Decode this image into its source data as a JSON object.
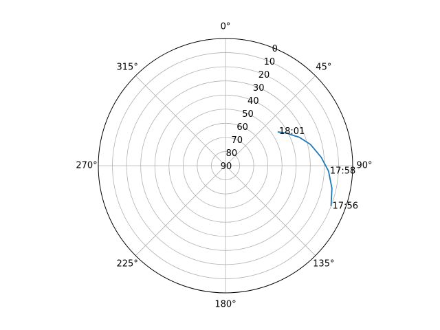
{
  "chart_data": {
    "type": "line",
    "projection": "polar",
    "theta_zero_location": "top",
    "theta_direction": "clockwise",
    "r_axis": {
      "inverted": true,
      "range": [
        0,
        90
      ],
      "ticks": [
        0,
        10,
        20,
        30,
        40,
        50,
        60,
        70,
        80,
        90
      ]
    },
    "theta_tick_labels": [
      "0°",
      "45°",
      "90°",
      "135°",
      "180°",
      "225°",
      "270°",
      "315°"
    ],
    "theta_ticks_deg": [
      0,
      45,
      90,
      135,
      180,
      225,
      270,
      315
    ],
    "grid": true,
    "series": [
      {
        "color": "#1f77b4",
        "points": [
          {
            "azimuth": 111,
            "elevation": 10
          },
          {
            "azimuth": 102,
            "elevation": 13
          },
          {
            "azimuth": 93,
            "elevation": 17
          },
          {
            "azimuth": 85,
            "elevation": 22
          },
          {
            "azimuth": 76,
            "elevation": 28
          },
          {
            "azimuth": 69,
            "elevation": 34
          },
          {
            "azimuth": 62,
            "elevation": 41
          },
          {
            "azimuth": 57,
            "elevation": 46
          }
        ]
      }
    ],
    "annotations": [
      {
        "text": "17:56",
        "azimuth": 111,
        "elevation": 10
      },
      {
        "text": "17:58",
        "azimuth": 93,
        "elevation": 17
      },
      {
        "text": "18:01",
        "azimuth": 57,
        "elevation": 46
      }
    ]
  }
}
